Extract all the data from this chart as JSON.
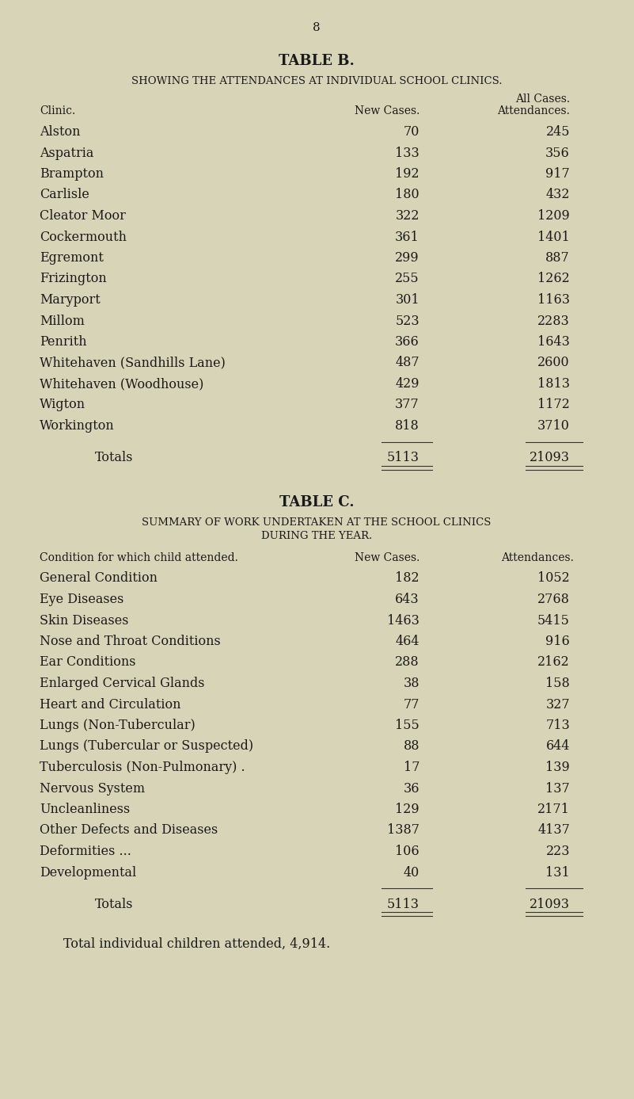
{
  "bg_color": "#d8d4b8",
  "page_number": "8",
  "table_b_title": "TABLE B.",
  "table_b_subtitle": "SHOWING THE ATTENDANCES AT INDIVIDUAL SCHOOL CLINICS.",
  "table_b_col1_header": "Clinic.",
  "table_b_col2_header": "New Cases.",
  "table_b_col3_header_line1": "All Cases.",
  "table_b_col3_header_line2": "Attendances.",
  "table_b_rows": [
    [
      "Alston",
      "70",
      "245"
    ],
    [
      "Aspatria",
      "133",
      "356"
    ],
    [
      "Brampton",
      "192",
      "917"
    ],
    [
      "Carlisle",
      "180",
      "432"
    ],
    [
      "Cleator Moor",
      "322",
      "1209"
    ],
    [
      "Cockermouth",
      "361",
      "1401"
    ],
    [
      "Egremont",
      "299",
      "887"
    ],
    [
      "Frizington",
      "255",
      "1262"
    ],
    [
      "Maryport",
      "301",
      "1163"
    ],
    [
      "Millom",
      "523",
      "2283"
    ],
    [
      "Penrith",
      "366",
      "1643"
    ],
    [
      "Whitehaven (Sandhills Lane)",
      "487",
      "2600"
    ],
    [
      "Whitehaven (Woodhouse)",
      "429",
      "1813"
    ],
    [
      "Wigton",
      "377",
      "1172"
    ],
    [
      "Workington",
      "818",
      "3710"
    ]
  ],
  "table_b_totals": [
    "Totals",
    "5113",
    "21093"
  ],
  "table_c_title": "TABLE C.",
  "table_c_subtitle_line1": "SUMMARY OF WORK UNDERTAKEN AT THE SCHOOL CLINICS",
  "table_c_subtitle_line2": "DURING THE YEAR.",
  "table_c_col1_header": "Condition for which child attended.",
  "table_c_col2_header": "New Cases.",
  "table_c_col3_header": "Attendances.",
  "table_c_rows": [
    [
      "General Condition",
      "182",
      "1052"
    ],
    [
      "Eye Diseases",
      "643",
      "2768"
    ],
    [
      "Skin Diseases",
      "1463",
      "5415"
    ],
    [
      "Nose and Throat Conditions",
      "464",
      "916"
    ],
    [
      "Ear Conditions",
      "288",
      "2162"
    ],
    [
      "Enlarged Cervical Glands",
      "38",
      "158"
    ],
    [
      "Heart and Circulation",
      "77",
      "327"
    ],
    [
      "Lungs (Non-Tubercular)",
      "155",
      "713"
    ],
    [
      "Lungs (Tubercular or Suspected)",
      "88",
      "644"
    ],
    [
      "Tuberculosis (Non-Pulmonary) .",
      "17",
      "139"
    ],
    [
      "Nervous System",
      "36",
      "137"
    ],
    [
      "Uncleanliness",
      "129",
      "2171"
    ],
    [
      "Other Defects and Diseases",
      "1387",
      "4137"
    ],
    [
      "Deformities ...",
      "106",
      "223"
    ],
    [
      "Developmental",
      "40",
      "131"
    ]
  ],
  "table_c_totals": [
    "Totals",
    "5113",
    "21093"
  ],
  "table_c_footer": "Total individual children attended, 4,914."
}
